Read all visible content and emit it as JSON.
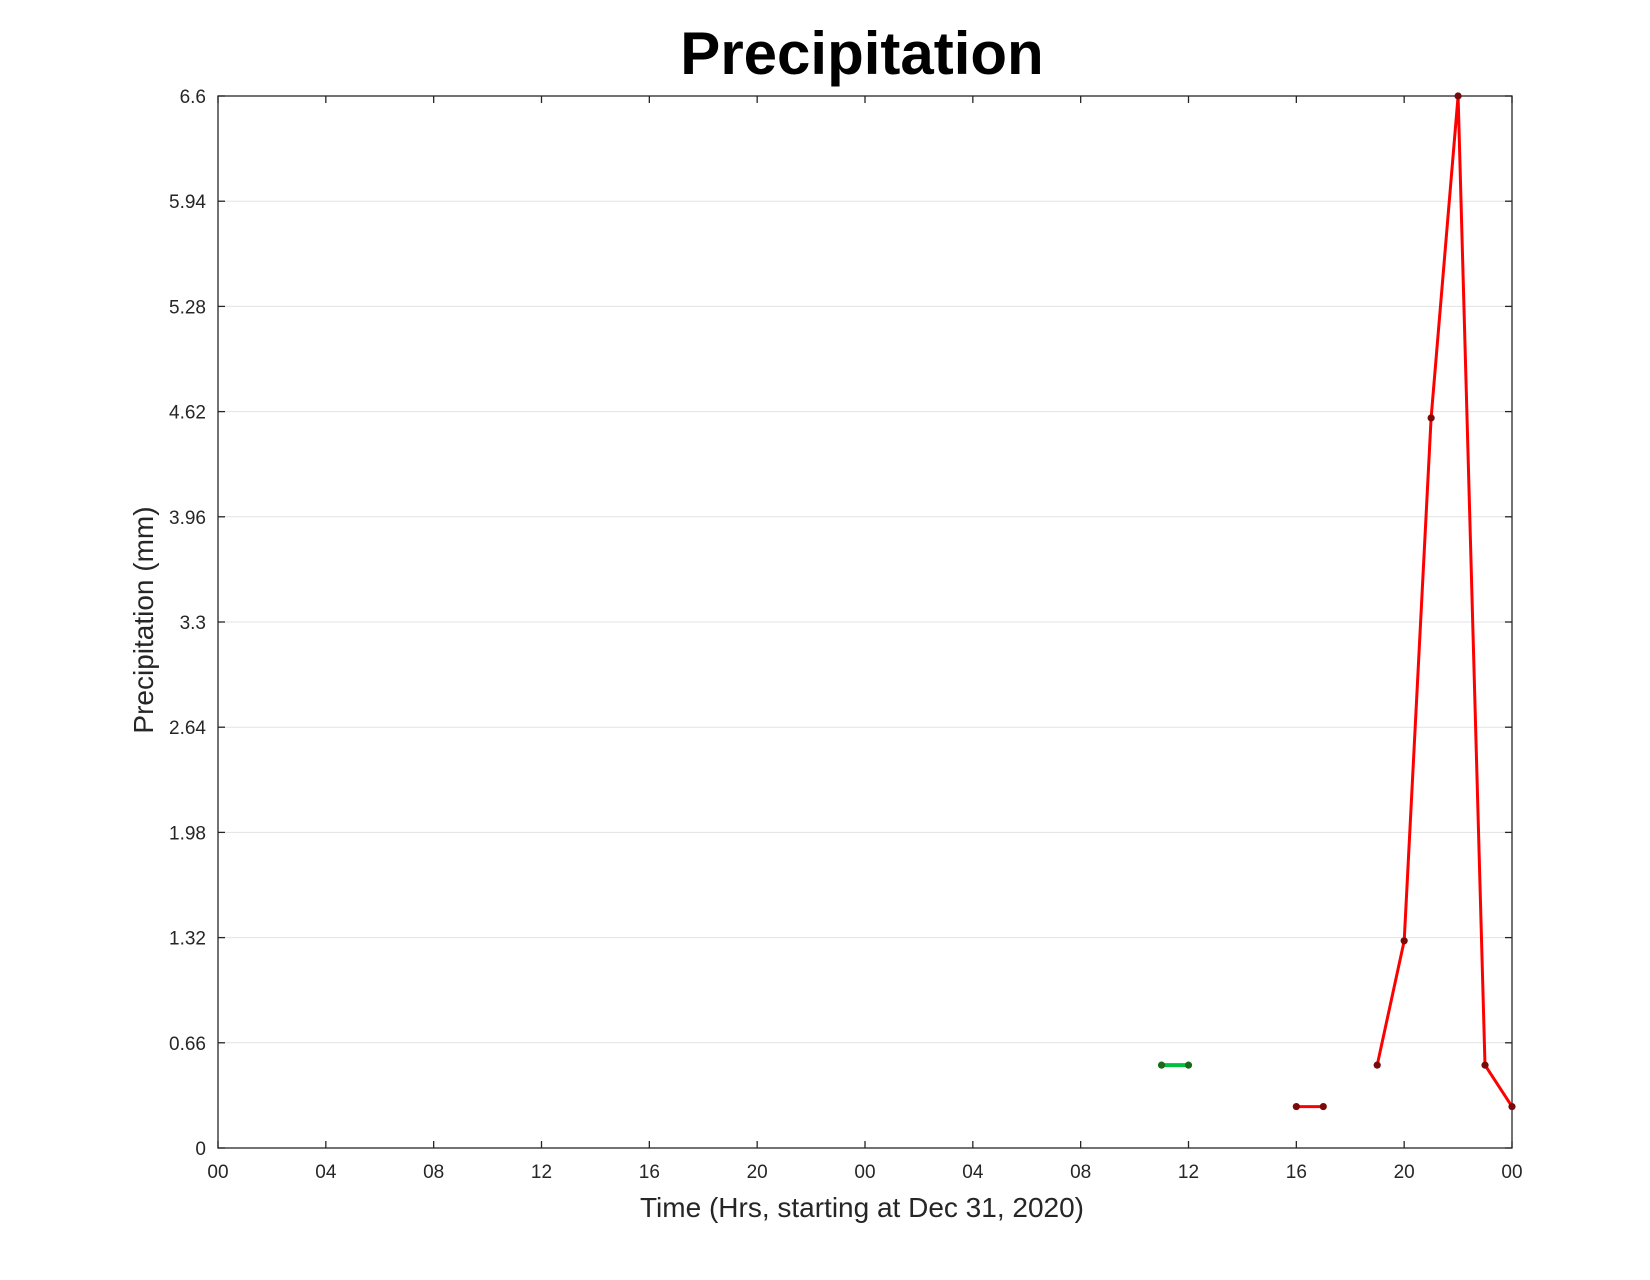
{
  "chart_data": {
    "type": "line",
    "title": "Precipitation",
    "xlabel": "Time (Hrs, starting at Dec 31, 2020)",
    "ylabel": "Precipitation (mm)",
    "x_unit": "hours",
    "xlim": [
      0,
      48
    ],
    "ylim": [
      0,
      6.6
    ],
    "x_ticks": [
      0,
      4,
      8,
      12,
      16,
      20,
      24,
      28,
      32,
      36,
      40,
      44,
      48
    ],
    "x_tick_labels": [
      "00",
      "04",
      "08",
      "12",
      "16",
      "20",
      "00",
      "04",
      "08",
      "12",
      "16",
      "20",
      "00"
    ],
    "y_ticks": [
      0,
      0.66,
      1.32,
      1.98,
      2.64,
      3.3,
      3.96,
      4.62,
      5.28,
      5.94,
      6.6
    ],
    "y_tick_labels": [
      "0",
      "0.66",
      "1.32",
      "1.98",
      "2.64",
      "3.3",
      "3.96",
      "4.62",
      "5.28",
      "5.94",
      "6.6"
    ],
    "grid": "horizontal",
    "series": [
      {
        "color": "#00c040",
        "marker_color": "#1a6a1a",
        "x": [
          35,
          36
        ],
        "y": [
          0.52,
          0.52
        ]
      },
      {
        "color": "#ff0000",
        "marker_color": "#7a0a0a",
        "x": [
          40,
          41
        ],
        "y": [
          0.26,
          0.26
        ]
      },
      {
        "color": "#ff0000",
        "marker_color": "#7a0a0a",
        "x": [
          43,
          44,
          45,
          46,
          47,
          48
        ],
        "y": [
          0.52,
          1.3,
          4.58,
          6.6,
          0.52,
          0.26
        ]
      }
    ]
  }
}
